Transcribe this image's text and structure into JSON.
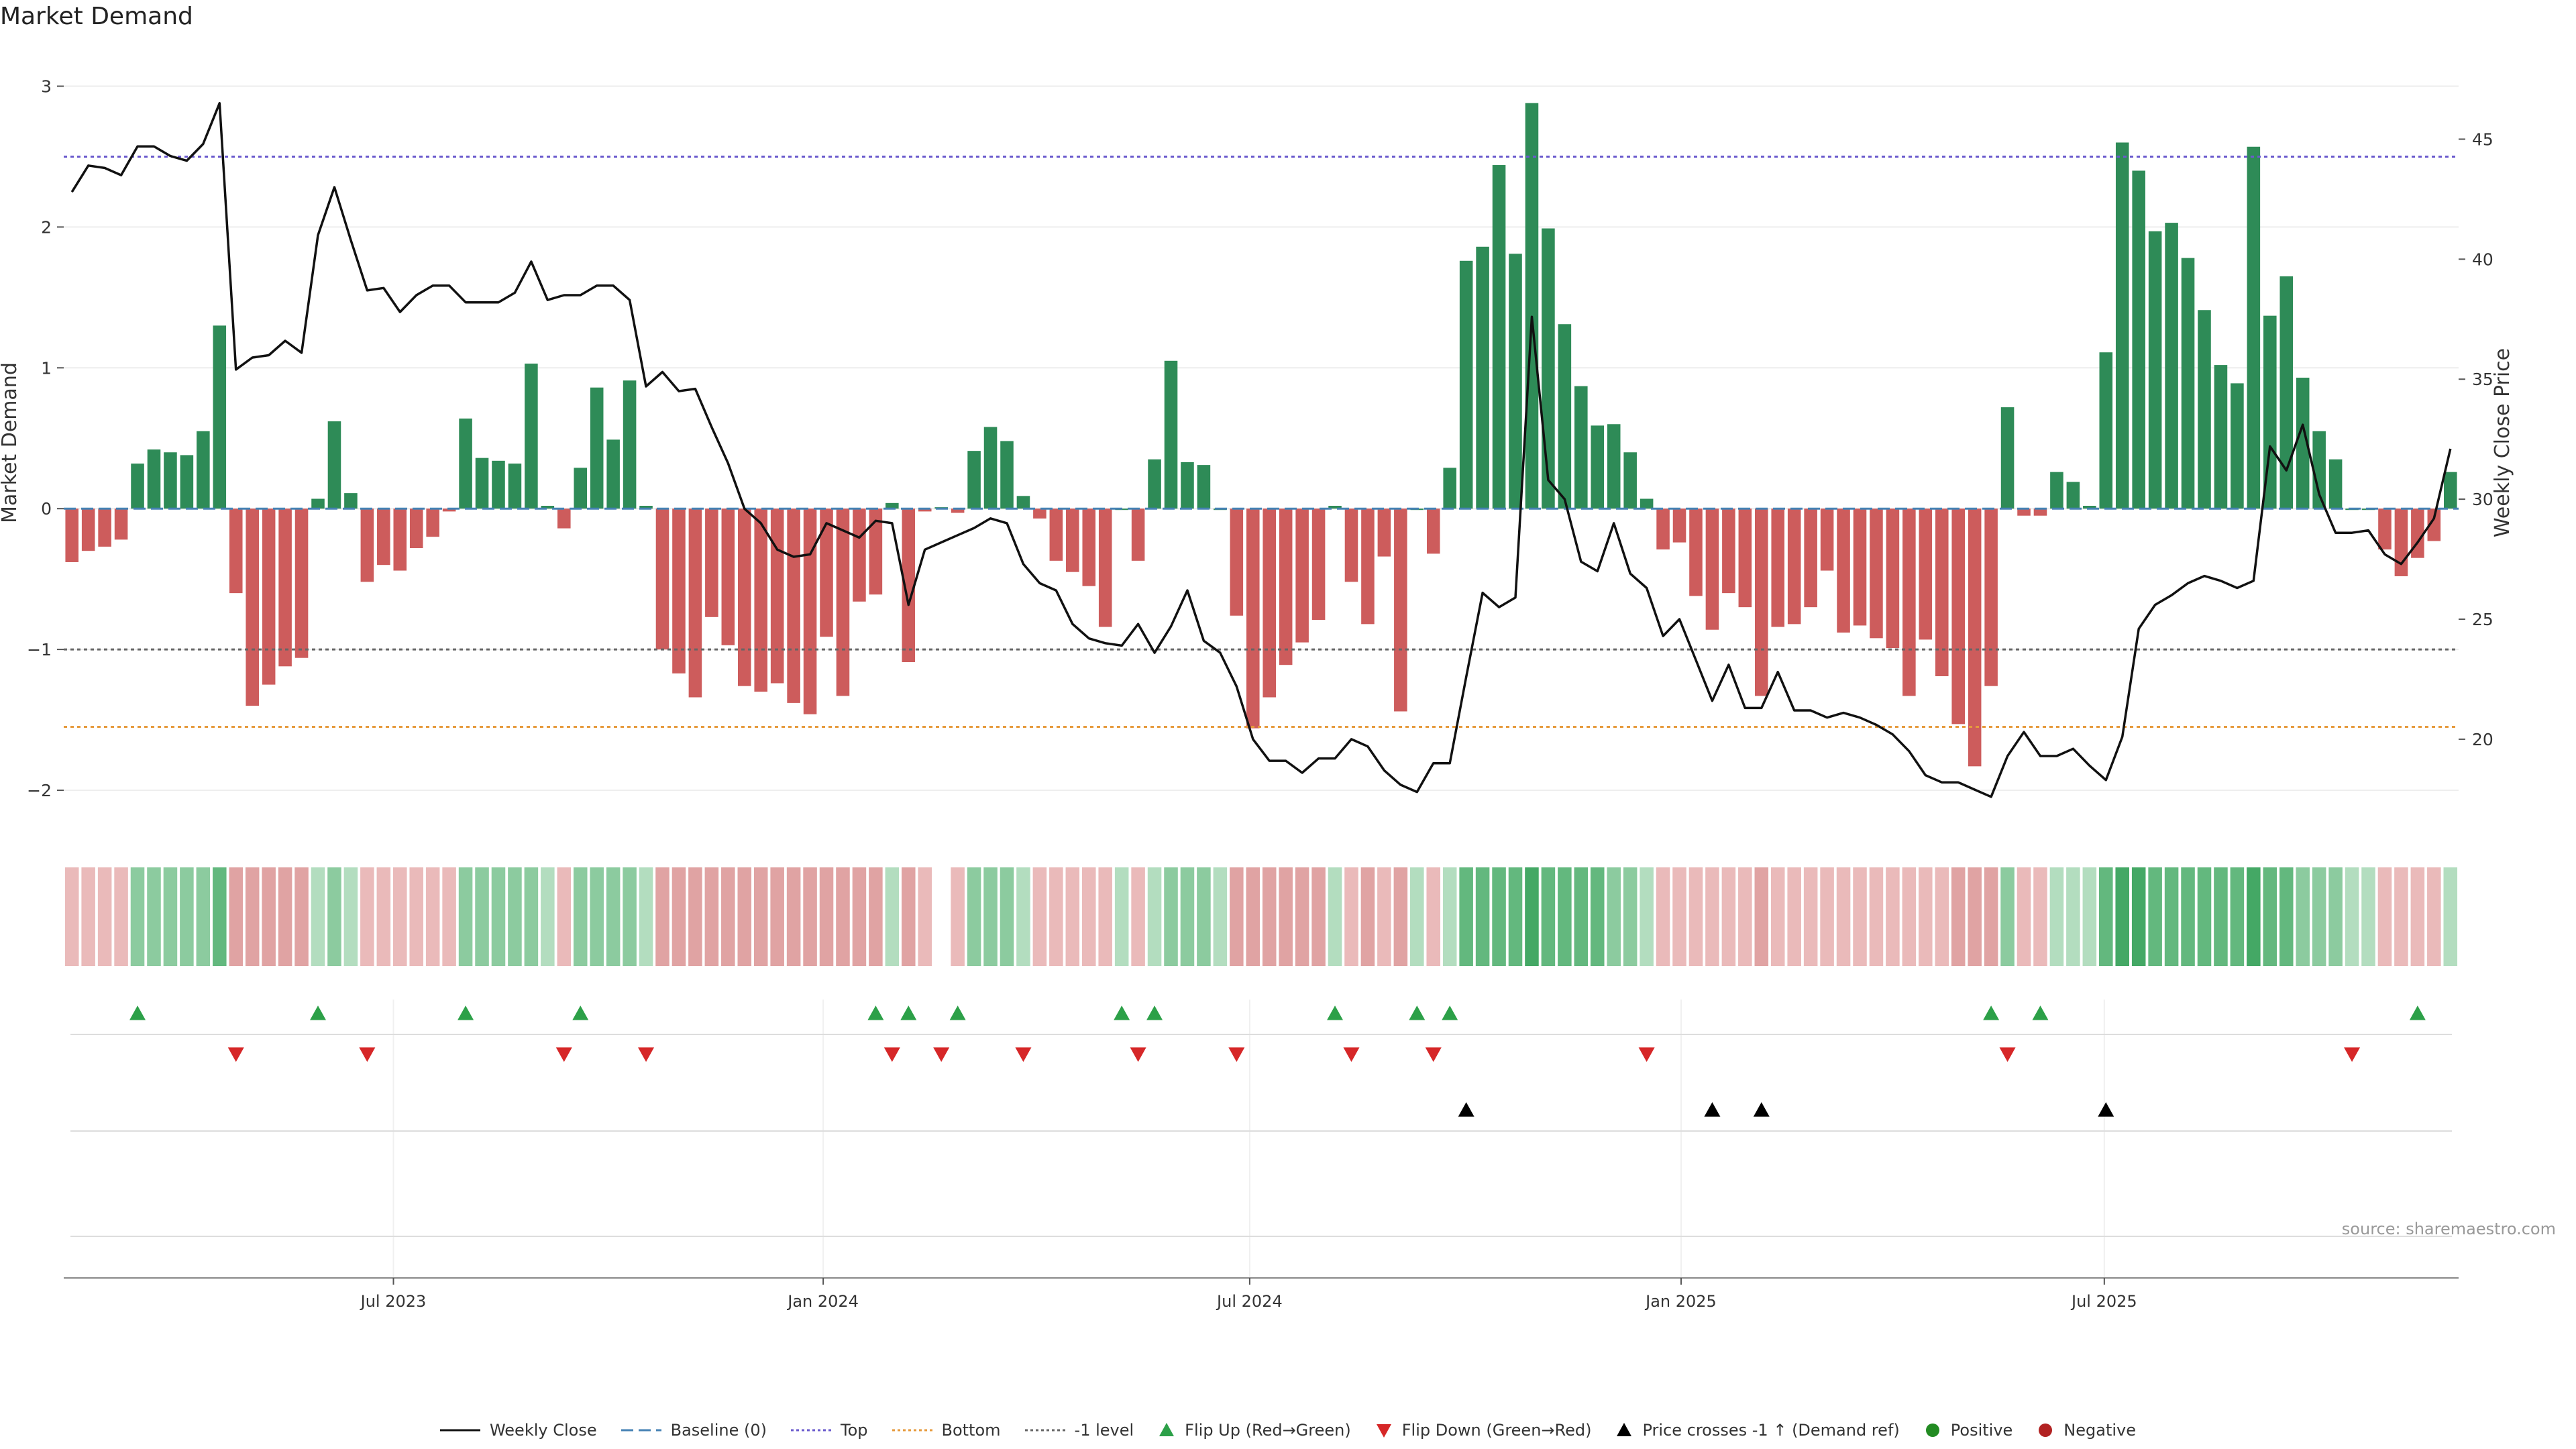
{
  "title": "Market Demand",
  "source": "source: sharemaestro.com",
  "colors": {
    "positive_bar": "#2e8b57",
    "negative_bar": "#cd5c5c",
    "price_line": "#111111",
    "baseline": "#4682b4",
    "top": "#6a5acd",
    "bottom": "#e69a3c",
    "neg1": "#666666",
    "flip_up": "#2ca048",
    "flip_down": "#d62728",
    "price_cross": "#000000"
  },
  "chart_data": {
    "type": "bar",
    "title": "Market Demand",
    "ylabel": "Market Demand",
    "y2label": "Weekly Close Price",
    "ylim": [
      -2.2,
      3.05
    ],
    "y2lim": [
      16.7,
      47.5
    ],
    "yticks": [
      "3",
      "2",
      "1",
      "0",
      "−1",
      "−2"
    ],
    "ytick_values": [
      3,
      2,
      1,
      0,
      -1,
      -2
    ],
    "y2ticks": [
      "45",
      "40",
      "35",
      "30",
      "25",
      "20"
    ],
    "y2tick_values": [
      45,
      40,
      35,
      30,
      25,
      20
    ],
    "xticks": [
      "Jul 2023",
      "Jan 2024",
      "Jul 2024",
      "Jan 2025",
      "Jul 2025"
    ],
    "xtick_index": [
      19.6,
      45.8,
      71.8,
      98.1,
      123.9
    ],
    "reference_lines": {
      "baseline": 0,
      "top": 2.5,
      "bottom": -1.55,
      "neg1_level": -1
    },
    "demand": [
      -0.38,
      -0.3,
      -0.27,
      -0.22,
      0.32,
      0.42,
      0.4,
      0.38,
      0.55,
      1.3,
      -0.6,
      -1.4,
      -1.25,
      -1.12,
      -1.06,
      0.07,
      0.62,
      0.11,
      -0.52,
      -0.4,
      -0.44,
      -0.28,
      -0.2,
      -0.02,
      0.64,
      0.36,
      0.34,
      0.32,
      1.03,
      0.02,
      -0.14,
      0.29,
      0.86,
      0.49,
      0.91,
      0.02,
      -1.0,
      -1.17,
      -1.34,
      -0.77,
      -0.97,
      -1.26,
      -1.3,
      -1.24,
      -1.38,
      -1.46,
      -0.91,
      -1.33,
      -0.66,
      -0.61,
      0.04,
      -1.09,
      -0.02,
      0.01,
      -0.03,
      0.41,
      0.58,
      0.48,
      0.09,
      -0.07,
      -0.37,
      -0.45,
      -0.55,
      -0.84,
      0.0,
      -0.37,
      0.35,
      1.05,
      0.33,
      0.31,
      0.0,
      -0.76,
      -1.56,
      -1.34,
      -1.11,
      -0.95,
      -0.79,
      0.02,
      -0.52,
      -0.82,
      -0.34,
      -1.44,
      0.0,
      -0.32,
      0.29,
      1.76,
      1.86,
      2.44,
      1.81,
      2.88,
      1.99,
      1.31,
      0.87,
      0.59,
      0.6,
      0.4,
      0.07,
      -0.29,
      -0.24,
      -0.62,
      -0.86,
      -0.6,
      -0.7,
      -1.33,
      -0.84,
      -0.82,
      -0.7,
      -0.44,
      -0.88,
      -0.83,
      -0.92,
      -0.99,
      -1.33,
      -0.93,
      -1.19,
      -1.53,
      -1.83,
      -1.26,
      0.72,
      -0.05,
      -0.05,
      0.26,
      0.19,
      0.02,
      1.11,
      2.6,
      2.4,
      1.97,
      2.03,
      1.78,
      1.41,
      1.02,
      0.89,
      2.57,
      1.37,
      1.65,
      0.93,
      0.55,
      0.35,
      0.0,
      0.0,
      -0.29,
      -0.48,
      -0.35,
      -0.23,
      0.26
    ],
    "weekly_close": [
      42.8,
      43.9,
      43.8,
      43.5,
      44.7,
      44.7,
      44.3,
      44.1,
      44.8,
      46.5,
      35.4,
      35.9,
      36.0,
      36.6,
      36.1,
      41.0,
      43.0,
      40.8,
      38.7,
      38.8,
      37.8,
      38.5,
      38.9,
      38.9,
      38.2,
      38.2,
      38.2,
      38.6,
      39.9,
      38.3,
      38.5,
      38.5,
      38.9,
      38.9,
      38.3,
      34.7,
      35.3,
      34.5,
      34.6,
      33.0,
      31.5,
      29.6,
      29.0,
      27.9,
      27.6,
      27.7,
      29.0,
      28.7,
      28.4,
      29.1,
      29.0,
      25.6,
      27.9,
      28.2,
      28.5,
      28.8,
      29.2,
      29.0,
      27.3,
      26.5,
      26.2,
      24.8,
      24.2,
      24.0,
      23.9,
      24.8,
      23.6,
      24.7,
      26.2,
      24.1,
      23.6,
      22.2,
      20.0,
      19.1,
      19.1,
      18.6,
      19.2,
      19.2,
      20.0,
      19.7,
      18.7,
      18.1,
      17.8,
      19.0,
      19.0,
      22.6,
      26.1,
      25.5,
      25.9,
      37.6,
      30.8,
      30.0,
      27.4,
      27.0,
      29.0,
      26.9,
      26.3,
      24.3,
      25.0,
      23.3,
      21.6,
      23.1,
      21.3,
      21.3,
      22.8,
      21.2,
      21.2,
      20.9,
      21.1,
      20.9,
      20.6,
      20.2,
      19.5,
      18.5,
      18.2,
      18.2,
      17.9,
      17.6,
      19.3,
      20.3,
      19.3,
      19.3,
      19.6,
      18.9,
      18.3,
      20.1,
      24.6,
      25.6,
      26.0,
      26.5,
      26.8,
      26.6,
      26.3,
      26.6,
      32.2,
      31.2,
      33.1,
      30.2,
      28.6,
      28.6,
      28.7,
      27.7,
      27.3,
      28.2,
      29.2,
      32.1
    ],
    "regime_strength": [
      1,
      1,
      1,
      1,
      2,
      2,
      2,
      2,
      2,
      3,
      2,
      2,
      2,
      2,
      2,
      1,
      2,
      1,
      1,
      1,
      1,
      1,
      1,
      1,
      2,
      2,
      2,
      2,
      2,
      1,
      1,
      2,
      2,
      2,
      2,
      1,
      2,
      2,
      2,
      2,
      2,
      2,
      2,
      2,
      2,
      2,
      2,
      2,
      2,
      2,
      1,
      2,
      1,
      0,
      1,
      2,
      2,
      2,
      1,
      1,
      1,
      1,
      1,
      1,
      1,
      1,
      1,
      2,
      2,
      2,
      1,
      2,
      2,
      2,
      2,
      2,
      2,
      1,
      1,
      2,
      1,
      2,
      1,
      1,
      1,
      3,
      3,
      3,
      3,
      4,
      3,
      3,
      3,
      3,
      2,
      2,
      1,
      1,
      1,
      1,
      1,
      1,
      1,
      2,
      1,
      1,
      1,
      1,
      1,
      1,
      1,
      1,
      1,
      1,
      1,
      2,
      2,
      2,
      2,
      1,
      1,
      1,
      1,
      1,
      3,
      4,
      4,
      3,
      3,
      3,
      3,
      3,
      3,
      4,
      3,
      3,
      2,
      2,
      2,
      1,
      1,
      1,
      1,
      1,
      1,
      1
    ],
    "flip_up": [
      4,
      15,
      24,
      31,
      49,
      51,
      54,
      64,
      66,
      77,
      82,
      84,
      117,
      120,
      143
    ],
    "flip_down": [
      10,
      18,
      30,
      35,
      50,
      53,
      58,
      65,
      71,
      78,
      83,
      96,
      118,
      139
    ],
    "price_cross_up": [
      85,
      100,
      103,
      124
    ]
  },
  "legend": [
    {
      "label": "Weekly Close",
      "kind": "line"
    },
    {
      "label": "Baseline (0)",
      "kind": "dash"
    },
    {
      "label": "Top",
      "kind": "dot-top"
    },
    {
      "label": "Bottom",
      "kind": "dot-bottom"
    },
    {
      "label": "-1 level",
      "kind": "dot-neg1"
    },
    {
      "label": "Flip Up (Red→Green)",
      "kind": "tri-up"
    },
    {
      "label": "Flip Down (Green→Red)",
      "kind": "tri-down"
    },
    {
      "label": "Price crosses -1 ↑ (Demand ref)",
      "kind": "tri-black"
    },
    {
      "label": "Positive",
      "kind": "dot-pos"
    },
    {
      "label": "Negative",
      "kind": "dot-neg"
    }
  ]
}
